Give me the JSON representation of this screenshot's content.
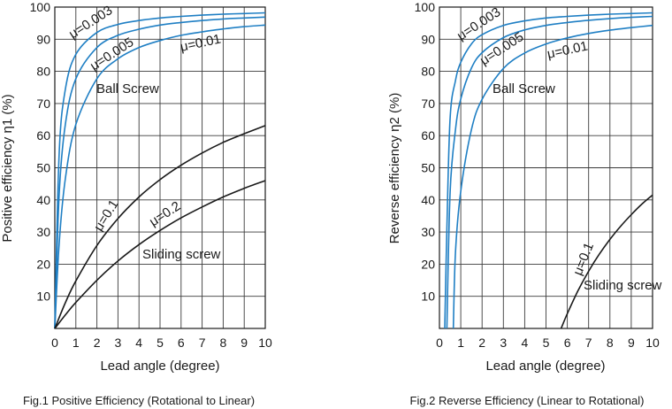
{
  "colors": {
    "ball": "#1f7fc4",
    "sliding": "#1a1a1a",
    "grid": "#3a3a3a"
  },
  "chart_data": [
    {
      "type": "line",
      "caption": "Fig.1 Positive Efficiency (Rotational to Linear)",
      "xlabel": "Lead angle (degree)",
      "ylabel": "Positive efficiency η1 (%)",
      "xlim": [
        0,
        10
      ],
      "ylim": [
        0,
        100
      ],
      "xticks": [
        "0",
        "1",
        "2",
        "3",
        "4",
        "5",
        "6",
        "7",
        "8",
        "9",
        "10"
      ],
      "yticks": [
        "10",
        "20",
        "30",
        "40",
        "50",
        "60",
        "70",
        "80",
        "90",
        "100"
      ],
      "grid": true,
      "annotations": [
        "Ball Screw",
        "Sliding screw"
      ],
      "series": [
        {
          "name": "μ=0.003",
          "group": "ball",
          "x": [
            0,
            0.2,
            0.5,
            1,
            2,
            3,
            4,
            5,
            6,
            7,
            8,
            9,
            10
          ],
          "y": [
            0,
            53.7,
            74.4,
            85.3,
            92.1,
            94.6,
            95.8,
            96.6,
            97.1,
            97.5,
            97.8,
            98.0,
            98.2
          ]
        },
        {
          "name": "μ=0.005",
          "group": "ball",
          "x": [
            0,
            0.2,
            0.5,
            1,
            2,
            3,
            4,
            5,
            6,
            7,
            8,
            9,
            10
          ],
          "y": [
            0,
            41.1,
            63.5,
            77.7,
            87.4,
            91.2,
            93.1,
            94.4,
            95.2,
            95.8,
            96.3,
            96.6,
            96.9
          ]
        },
        {
          "name": "μ=0.01",
          "group": "ball",
          "x": [
            0,
            0.2,
            0.5,
            1,
            2,
            3,
            4,
            5,
            6,
            7,
            8,
            9,
            10
          ],
          "y": [
            0,
            25.9,
            46.6,
            63.5,
            77.7,
            83.9,
            87.4,
            89.6,
            91.2,
            92.3,
            93.2,
            93.9,
            94.4
          ]
        },
        {
          "name": "μ=0.1",
          "group": "sliding",
          "x": [
            0,
            0.5,
            1,
            2,
            3,
            4,
            5,
            6,
            7,
            8,
            9,
            10
          ],
          "y": [
            0,
            8.0,
            14.8,
            25.8,
            34.2,
            40.9,
            46.3,
            50.8,
            54.6,
            57.9,
            60.6,
            63.1
          ]
        },
        {
          "name": "μ=0.2",
          "group": "sliding",
          "x": [
            0,
            0.5,
            1,
            2,
            3,
            4,
            5,
            6,
            7,
            8,
            9,
            10
          ],
          "y": [
            0,
            4.2,
            8.1,
            15.0,
            21.0,
            26.1,
            30.5,
            34.4,
            37.8,
            40.9,
            43.6,
            46.0
          ]
        }
      ]
    },
    {
      "type": "line",
      "caption": "Fig.2 Reverse Efficiency (Linear to Rotational)",
      "xlabel": "Lead angle (degree)",
      "ylabel": "Reverse efficiency η2 (%)",
      "xlim": [
        0,
        10
      ],
      "ylim": [
        0,
        100
      ],
      "xticks": [
        "0",
        "1",
        "2",
        "3",
        "4",
        "5",
        "6",
        "7",
        "8",
        "9",
        "10"
      ],
      "yticks": [
        "10",
        "20",
        "30",
        "40",
        "50",
        "60",
        "70",
        "80",
        "90",
        "100"
      ],
      "grid": true,
      "annotations": [
        "Ball Screw",
        "Sliding screw"
      ],
      "series": [
        {
          "name": "μ=0.003",
          "group": "ball",
          "x": [
            0.25,
            0.35,
            0.5,
            0.75,
            1,
            1.5,
            2,
            3,
            4,
            5,
            6,
            7,
            8,
            9,
            10
          ],
          "y": [
            0,
            31.0,
            65.6,
            77.1,
            82.8,
            88.5,
            91.4,
            94.3,
            95.7,
            96.6,
            97.1,
            97.5,
            97.8,
            98.0,
            98.2
          ]
        },
        {
          "name": "μ=0.005",
          "group": "ball",
          "x": [
            0.35,
            0.5,
            0.75,
            1,
            1.5,
            2,
            3,
            4,
            5,
            6,
            7,
            8,
            9,
            10
          ],
          "y": [
            0,
            42.6,
            61.8,
            71.4,
            81.0,
            85.8,
            90.5,
            92.9,
            94.3,
            95.2,
            95.9,
            96.4,
            96.8,
            97.1
          ]
        },
        {
          "name": "μ=0.01",
          "group": "ball",
          "x": [
            0.65,
            0.75,
            1,
            1.5,
            2,
            3,
            4,
            5,
            6,
            7,
            8,
            9,
            10
          ],
          "y": [
            0,
            23.6,
            42.7,
            61.8,
            71.3,
            80.9,
            85.7,
            88.5,
            90.4,
            91.8,
            92.8,
            93.6,
            94.3
          ]
        },
        {
          "name": "μ=0.1",
          "group": "sliding",
          "x": [
            5.71,
            6,
            6.5,
            7,
            7.5,
            8,
            8.5,
            9,
            9.5,
            10
          ],
          "y": [
            0,
            4.6,
            11.7,
            17.8,
            23.1,
            27.7,
            31.8,
            35.4,
            38.7,
            41.5
          ]
        }
      ]
    }
  ]
}
